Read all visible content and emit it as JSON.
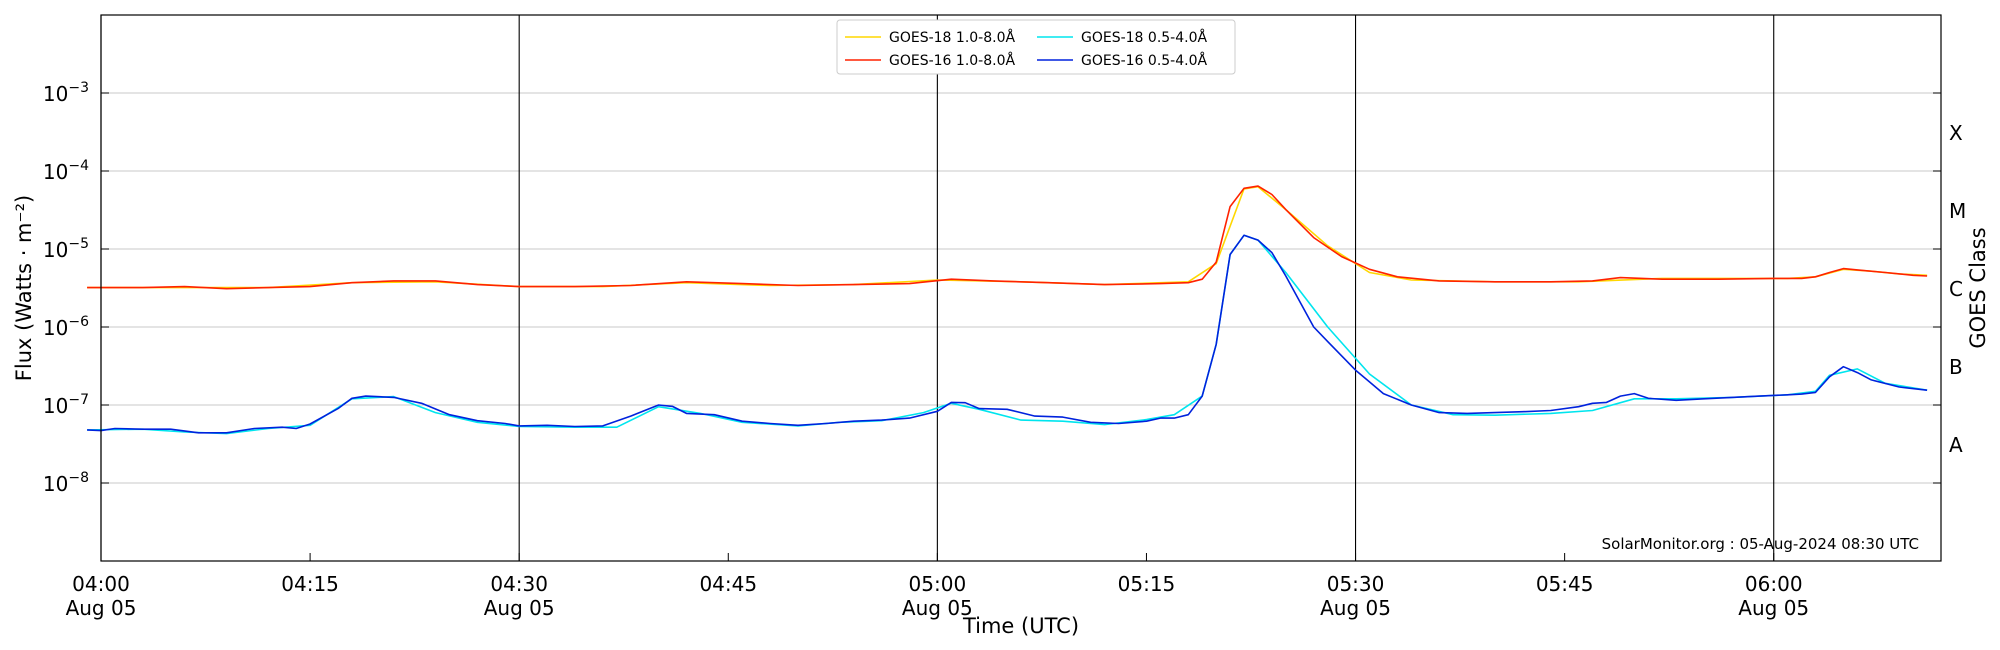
{
  "chart_data": {
    "type": "line",
    "title": "",
    "xlabel": "Time (UTC)",
    "ylabel": "Flux (Watts · m⁻²)",
    "y2label": "GOES Class",
    "yscale": "log",
    "ylim": [
      1e-09,
      0.01
    ],
    "xlim": [
      "04:00",
      "06:12"
    ],
    "grid": "horizontal at decades",
    "legend_placement": "top-center",
    "credit": "SolarMonitor.org : 05-Aug-2024 08:30 UTC",
    "x_ticks": [
      {
        "time": "04:00",
        "label": "04:00",
        "date": "Aug 05",
        "major": true
      },
      {
        "time": "04:15",
        "label": "04:15",
        "date": "",
        "major": false
      },
      {
        "time": "04:30",
        "label": "04:30",
        "date": "Aug 05",
        "major": true
      },
      {
        "time": "04:45",
        "label": "04:45",
        "date": "",
        "major": false
      },
      {
        "time": "05:00",
        "label": "05:00",
        "date": "Aug 05",
        "major": true
      },
      {
        "time": "05:15",
        "label": "05:15",
        "date": "",
        "major": false
      },
      {
        "time": "05:30",
        "label": "05:30",
        "date": "Aug 05",
        "major": true
      },
      {
        "time": "05:45",
        "label": "05:45",
        "date": "",
        "major": false
      },
      {
        "time": "06:00",
        "label": "06:00",
        "date": "Aug 05",
        "major": true
      }
    ],
    "y_ticks": [
      {
        "value": 0.001,
        "mantissa": "10",
        "exp": "−3"
      },
      {
        "value": 0.0001,
        "mantissa": "10",
        "exp": "−4"
      },
      {
        "value": 1e-05,
        "mantissa": "10",
        "exp": "−5"
      },
      {
        "value": 1e-06,
        "mantissa": "10",
        "exp": "−6"
      },
      {
        "value": 1e-07,
        "mantissa": "10",
        "exp": "−7"
      },
      {
        "value": 1e-08,
        "mantissa": "10",
        "exp": "−8"
      }
    ],
    "goes_classes": [
      {
        "label": "X",
        "value": 0.000316
      },
      {
        "label": "M",
        "value": 3.16e-05
      },
      {
        "label": "C",
        "value": 3.16e-06
      },
      {
        "label": "B",
        "value": 3.16e-07
      },
      {
        "label": "A",
        "value": 3.16e-08
      }
    ],
    "series": [
      {
        "name": "GOES-18 1.0-8.0Å",
        "color": "#ffd700",
        "x": [
          "03:59",
          "04:06",
          "04:12",
          "04:18",
          "04:24",
          "04:30",
          "04:36",
          "04:42",
          "04:48",
          "04:54",
          "05:00",
          "05:06",
          "05:12",
          "05:18",
          "05:20",
          "05:22",
          "05:23",
          "05:25",
          "05:28",
          "05:31",
          "05:34",
          "05:40",
          "05:46",
          "05:52",
          "05:58",
          "06:01",
          "06:03",
          "06:05",
          "06:07",
          "06:09",
          "06:11"
        ],
        "values": [
          3.2e-06,
          3.2e-06,
          3.2e-06,
          3.7e-06,
          3.8e-06,
          3.3e-06,
          3.3e-06,
          3.7e-06,
          3.4e-06,
          3.5e-06,
          4e-06,
          3.8e-06,
          3.5e-06,
          3.8e-06,
          6.5e-06,
          5.9e-05,
          6.3e-05,
          3.2e-05,
          1.1e-05,
          5e-06,
          4e-06,
          3.8e-06,
          3.8e-06,
          4.2e-06,
          4.2e-06,
          4.2e-06,
          4.4e-06,
          5.5e-06,
          5.2e-06,
          4.8e-06,
          4.6e-06
        ]
      },
      {
        "name": "GOES-16 1.0-8.0Å",
        "color": "#ff2200",
        "x": [
          "03:59",
          "04:00",
          "04:03",
          "04:06",
          "04:09",
          "04:12",
          "04:15",
          "04:18",
          "04:21",
          "04:24",
          "04:27",
          "04:30",
          "04:34",
          "04:38",
          "04:42",
          "04:46",
          "04:50",
          "04:54",
          "04:58",
          "05:01",
          "05:04",
          "05:08",
          "05:12",
          "05:16",
          "05:18",
          "05:19",
          "05:20",
          "05:21",
          "05:22",
          "05:23",
          "05:24",
          "05:25",
          "05:27",
          "05:29",
          "05:31",
          "05:33",
          "05:36",
          "05:40",
          "05:44",
          "05:47",
          "05:49",
          "05:52",
          "05:56",
          "06:00",
          "06:02",
          "06:03",
          "06:04",
          "06:05",
          "06:06",
          "06:08",
          "06:10",
          "06:11"
        ],
        "values": [
          3.2e-06,
          3.2e-06,
          3.2e-06,
          3.3e-06,
          3.1e-06,
          3.2e-06,
          3.3e-06,
          3.7e-06,
          3.9e-06,
          3.9e-06,
          3.5e-06,
          3.3e-06,
          3.3e-06,
          3.4e-06,
          3.8e-06,
          3.6e-06,
          3.4e-06,
          3.5e-06,
          3.6e-06,
          4.1e-06,
          3.9e-06,
          3.7e-06,
          3.5e-06,
          3.6e-06,
          3.7e-06,
          4.1e-06,
          6.8e-06,
          3.5e-05,
          6e-05,
          6.4e-05,
          5e-05,
          3.2e-05,
          1.4e-05,
          8e-06,
          5.5e-06,
          4.4e-06,
          3.9e-06,
          3.8e-06,
          3.8e-06,
          3.9e-06,
          4.3e-06,
          4.1e-06,
          4.1e-06,
          4.2e-06,
          4.2e-06,
          4.4e-06,
          5e-06,
          5.6e-06,
          5.4e-06,
          5e-06,
          4.6e-06,
          4.5e-06
        ]
      },
      {
        "name": "GOES-18 0.5-4.0Å",
        "color": "#00e5ee",
        "x": [
          "03:59",
          "04:03",
          "04:06",
          "04:09",
          "04:12",
          "04:15",
          "04:18",
          "04:21",
          "04:24",
          "04:27",
          "04:30",
          "04:34",
          "04:37",
          "04:40",
          "04:43",
          "04:46",
          "04:50",
          "04:53",
          "04:56",
          "04:59",
          "05:01",
          "05:03",
          "05:06",
          "05:09",
          "05:12",
          "05:15",
          "05:17",
          "05:19",
          "05:20",
          "05:21",
          "05:22",
          "05:23",
          "05:25",
          "05:28",
          "05:31",
          "05:34",
          "05:37",
          "05:40",
          "05:44",
          "05:47",
          "05:50",
          "05:53",
          "05:57",
          "06:01",
          "06:03",
          "06:04",
          "06:06",
          "06:08",
          "06:11"
        ],
        "values": [
          4.8e-08,
          4.9e-08,
          4.5e-08,
          4.3e-08,
          5e-08,
          5.5e-08,
          1.2e-07,
          1.28e-07,
          8e-08,
          6e-08,
          5.3e-08,
          5.2e-08,
          5.2e-08,
          9.5e-08,
          7.8e-08,
          6e-08,
          5.4e-08,
          6e-08,
          6.3e-08,
          8e-08,
          1.05e-07,
          8.8e-08,
          6.4e-08,
          6.2e-08,
          5.6e-08,
          6.5e-08,
          7.5e-08,
          1.3e-07,
          6e-07,
          8.5e-06,
          1.5e-05,
          1.3e-05,
          5e-06,
          1e-06,
          2.5e-07,
          1e-07,
          7.5e-08,
          7.4e-08,
          7.8e-08,
          8.5e-08,
          1.2e-07,
          1.2e-07,
          1.25e-07,
          1.35e-07,
          1.5e-07,
          2.4e-07,
          2.9e-07,
          1.9e-07,
          1.55e-07
        ]
      },
      {
        "name": "GOES-16 0.5-4.0Å",
        "color": "#0022dd",
        "x": [
          "03:59",
          "04:00",
          "04:01",
          "04:03",
          "04:05",
          "04:07",
          "04:09",
          "04:11",
          "04:13",
          "04:14",
          "04:15",
          "04:17",
          "04:18",
          "04:19",
          "04:21",
          "04:23",
          "04:25",
          "04:27",
          "04:29",
          "04:30",
          "04:32",
          "04:34",
          "04:36",
          "04:38",
          "04:40",
          "04:41",
          "04:42",
          "04:44",
          "04:46",
          "04:48",
          "04:50",
          "04:52",
          "04:54",
          "04:56",
          "04:58",
          "05:00",
          "05:01",
          "05:02",
          "05:03",
          "05:05",
          "05:07",
          "05:09",
          "05:11",
          "05:13",
          "05:15",
          "05:16",
          "05:17",
          "05:18",
          "05:19",
          "05:20",
          "05:21",
          "05:22",
          "05:23",
          "05:24",
          "05:25",
          "05:27",
          "05:28",
          "05:30",
          "05:32",
          "05:34",
          "05:36",
          "05:38",
          "05:40",
          "05:42",
          "05:44",
          "05:46",
          "05:47",
          "05:48",
          "05:49",
          "05:50",
          "05:51",
          "05:53",
          "05:55",
          "05:57",
          "05:59",
          "06:01",
          "06:02",
          "06:03",
          "06:04",
          "06:05",
          "06:06",
          "06:07",
          "06:09",
          "06:11"
        ],
        "values": [
          4.8e-08,
          4.7e-08,
          5e-08,
          4.9e-08,
          4.9e-08,
          4.4e-08,
          4.4e-08,
          5e-08,
          5.2e-08,
          5e-08,
          5.7e-08,
          9e-08,
          1.22e-07,
          1.3e-07,
          1.25e-07,
          1.05e-07,
          7.5e-08,
          6.3e-08,
          5.8e-08,
          5.4e-08,
          5.5e-08,
          5.3e-08,
          5.4e-08,
          7.2e-08,
          1e-07,
          9.6e-08,
          7.8e-08,
          7.5e-08,
          6.2e-08,
          5.8e-08,
          5.5e-08,
          5.8e-08,
          6.2e-08,
          6.4e-08,
          6.8e-08,
          8.3e-08,
          1.08e-07,
          1.07e-07,
          9e-08,
          8.8e-08,
          7.2e-08,
          7e-08,
          6e-08,
          5.8e-08,
          6.2e-08,
          6.8e-08,
          6.8e-08,
          7.5e-08,
          1.3e-07,
          6e-07,
          8.5e-06,
          1.5e-05,
          1.3e-05,
          9e-06,
          4.5e-06,
          1e-06,
          6.5e-07,
          2.8e-07,
          1.4e-07,
          1e-07,
          8e-08,
          7.8e-08,
          8e-08,
          8.2e-08,
          8.5e-08,
          9.5e-08,
          1.05e-07,
          1.08e-07,
          1.3e-07,
          1.4e-07,
          1.22e-07,
          1.15e-07,
          1.2e-07,
          1.25e-07,
          1.3e-07,
          1.35e-07,
          1.38e-07,
          1.45e-07,
          2.3e-07,
          3.1e-07,
          2.6e-07,
          2.1e-07,
          1.7e-07,
          1.55e-07
        ]
      }
    ]
  }
}
